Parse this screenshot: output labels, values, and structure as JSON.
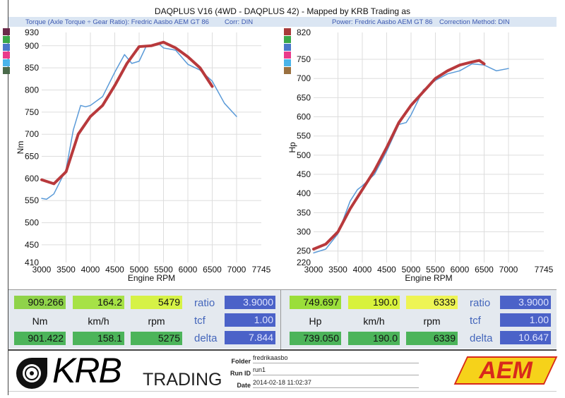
{
  "title": "DAQPLUS V16 (4WD - DAQPLUS 42) - Mapped by KRB Trading as",
  "left_header": {
    "text": "Torque (Axle Torque ÷ Gear Ratio): Fredric Aasbo AEM GT 86",
    "corr": "Corr: DIN"
  },
  "right_header": {
    "text": "Power: Fredric Aasbo AEM GT 86",
    "corr": "Correction Method: DIN"
  },
  "legend_left": [
    "#6b2a4a",
    "#3aa84a",
    "#4a78c8",
    "#ea3a8a",
    "#4ab4ea",
    "#4a6a4a"
  ],
  "legend_right": [
    "#a83a3a",
    "#3aa84a",
    "#4a78c8",
    "#ea3a8a",
    "#4ab4ea",
    "#9a7040"
  ],
  "chart_data": [
    {
      "type": "line",
      "ylabel": "Nm",
      "xlabel": "Engine RPM",
      "xlim": [
        3000,
        7745
      ],
      "ylim": [
        410,
        930
      ],
      "xticks": [
        "3000",
        "3500",
        "4000",
        "4500",
        "5000",
        "5500",
        "6000",
        "6500",
        "7000",
        "7745"
      ],
      "yticks": [
        "930",
        "900",
        "850",
        "800",
        "750",
        "700",
        "650",
        "600",
        "550",
        "500",
        "450",
        "410"
      ],
      "series": [
        {
          "name": "run-blue",
          "color": "#5a9ad8",
          "x": [
            3000,
            3100,
            3250,
            3500,
            3650,
            3800,
            3900,
            4000,
            4250,
            4500,
            4700,
            4850,
            5000,
            5150,
            5250,
            5400,
            5500,
            5750,
            6000,
            6250,
            6500,
            6750,
            7000
          ],
          "y": [
            555,
            553,
            565,
            620,
            710,
            765,
            762,
            765,
            785,
            840,
            880,
            860,
            865,
            900,
            900,
            905,
            895,
            890,
            858,
            845,
            820,
            770,
            740
          ]
        },
        {
          "name": "run-red",
          "color": "#b8393c",
          "x": [
            3000,
            3250,
            3500,
            3750,
            4000,
            4250,
            4500,
            4750,
            5000,
            5250,
            5500,
            5750,
            6000,
            6250,
            6500
          ],
          "y": [
            597,
            588,
            615,
            700,
            740,
            765,
            810,
            860,
            898,
            900,
            908,
            895,
            875,
            850,
            808
          ]
        }
      ]
    },
    {
      "type": "line",
      "ylabel": "Hp",
      "xlabel": "Engine RPM",
      "xlim": [
        3000,
        7745
      ],
      "ylim": [
        220,
        820
      ],
      "xticks": [
        "3000",
        "3500",
        "4000",
        "4500",
        "5000",
        "5500",
        "6000",
        "6500",
        "7000",
        "7745"
      ],
      "yticks": [
        "820",
        "750",
        "700",
        "650",
        "600",
        "550",
        "500",
        "450",
        "400",
        "350",
        "300",
        "250",
        "220"
      ],
      "series": [
        {
          "name": "run-blue",
          "color": "#5a9ad8",
          "x": [
            3000,
            3250,
            3500,
            3750,
            3900,
            4000,
            4250,
            4500,
            4750,
            4900,
            5000,
            5250,
            5500,
            5750,
            6000,
            6250,
            6500,
            6750,
            7000
          ],
          "y": [
            245,
            255,
            295,
            380,
            410,
            420,
            450,
            510,
            580,
            585,
            605,
            670,
            695,
            712,
            720,
            738,
            735,
            720,
            726
          ]
        },
        {
          "name": "run-red",
          "color": "#b8393c",
          "x": [
            3000,
            3250,
            3500,
            3750,
            4000,
            4250,
            4500,
            4750,
            5000,
            5250,
            5500,
            5750,
            6000,
            6250,
            6400,
            6500
          ],
          "y": [
            255,
            268,
            300,
            360,
            410,
            460,
            520,
            585,
            630,
            665,
            700,
            720,
            735,
            743,
            747,
            738
          ]
        }
      ]
    }
  ],
  "readouts_left": {
    "top": [
      "909.266",
      "164.2",
      "5479"
    ],
    "units": [
      "Nm",
      "km/h",
      "rpm"
    ],
    "bottom": [
      "901.422",
      "158.1",
      "5275"
    ],
    "labels": [
      "ratio",
      "tcf",
      "delta"
    ],
    "values": [
      "3.9000",
      "1.00",
      "7.844"
    ]
  },
  "readouts_right": {
    "top": [
      "749.697",
      "190.0",
      "6339"
    ],
    "units": [
      "Hp",
      "km/h",
      "rpm"
    ],
    "bottom": [
      "739.050",
      "190.0",
      "6339"
    ],
    "labels": [
      "ratio",
      "tcf",
      "delta"
    ],
    "values": [
      "3.9000",
      "1.00",
      "10.647"
    ]
  },
  "footer": {
    "logo": "KRB",
    "logo_sub": "TRADING",
    "folder_label": "Folder",
    "folder": "fredrikaasbo",
    "run_label": "Run ID",
    "run": "run1",
    "date_label": "Date",
    "date": "2014-02-18 11:02:37",
    "brand": "AEM"
  }
}
